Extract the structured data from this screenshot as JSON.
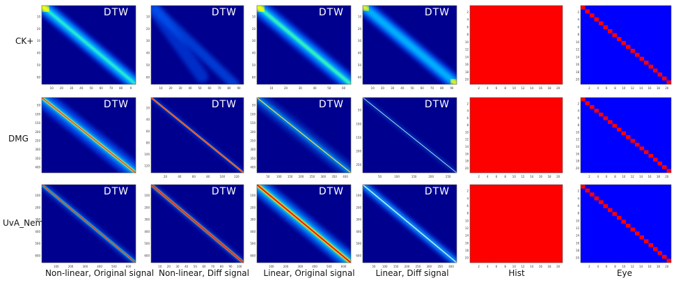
{
  "rows": [
    "CK+",
    "DMG",
    "UvA_Nemo"
  ],
  "columns": [
    "Non-linear, Original signal",
    "Non-linear, Diff signal",
    "Linear, Original signal",
    "Linear, Diff signal",
    "Hist",
    "Eye"
  ],
  "overlay_label": "DTW",
  "tick_labels": {
    "ck_x_a": [
      "10",
      "20",
      "30",
      "40",
      "50",
      "60",
      "70",
      "80",
      "9"
    ],
    "ck_x_b": [
      "10",
      "20",
      "30",
      "40",
      "50",
      "60",
      "70",
      "80",
      "90"
    ],
    "ck_x_c": [
      "10",
      "20",
      "30",
      "40",
      "50",
      "60"
    ],
    "ck_x_d": [
      "10",
      "20",
      "30",
      "40",
      "50",
      "60",
      "70",
      "80",
      "90"
    ],
    "ck_y_a": [
      "10",
      "20",
      "30",
      "40",
      "50",
      "60"
    ],
    "ck_y_b": [
      "10",
      "20",
      "30",
      "40",
      "50",
      "60"
    ],
    "dmg_x_a": [],
    "dmg_x_b": [
      "20",
      "40",
      "60",
      "80",
      "100",
      "120"
    ],
    "dmg_x_c": [
      "50",
      "100",
      "150",
      "200",
      "250",
      "300",
      "350",
      "400"
    ],
    "dmg_x_d": [
      "50",
      "100",
      "150",
      "200",
      "250"
    ],
    "dmg_y_a": [
      "50",
      "100",
      "150",
      "200",
      "250",
      "300",
      "350",
      "400"
    ],
    "dmg_y_b": [
      "20",
      "40",
      "60",
      "80",
      "100",
      "120"
    ],
    "dmg_y_d": [
      "50",
      "100",
      "150",
      "200",
      "250"
    ],
    "uva_x_a": [
      "100",
      "200",
      "300",
      "400",
      "500",
      "600"
    ],
    "uva_x_b": [
      "10",
      "20",
      "30",
      "40",
      "50",
      "60",
      "70",
      "80",
      "90",
      "100"
    ],
    "uva_x_c": [
      "100",
      "200",
      "300",
      "400",
      "500",
      "600"
    ],
    "uva_x_d": [
      "50",
      "100",
      "150",
      "200",
      "250",
      "300",
      "350",
      "400"
    ],
    "uva_y": [
      "100",
      "200",
      "300",
      "400",
      "500",
      "600"
    ],
    "hist_x": [
      "2",
      "4",
      "6",
      "8",
      "10",
      "12",
      "14",
      "16",
      "18",
      "20"
    ],
    "hist_y": [
      "2",
      "4",
      "6",
      "8",
      "10",
      "12",
      "14",
      "16",
      "18",
      "20"
    ]
  },
  "colors": {
    "jet_background": "#00008F",
    "hist_fill": "#FF0000",
    "eye_background": "#0000FF",
    "eye_diagonal": "#FF0000"
  }
}
